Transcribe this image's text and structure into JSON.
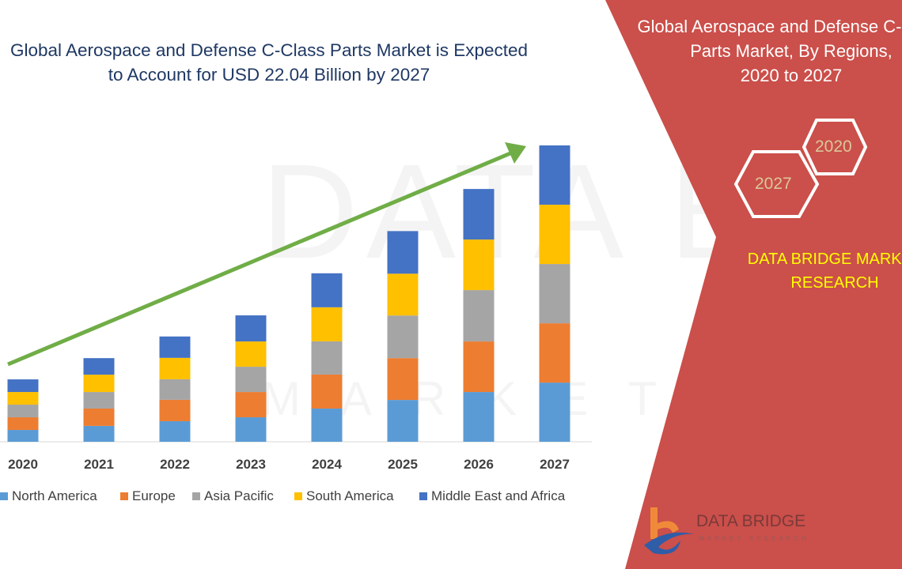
{
  "title": {
    "line1": "Global Aerospace and Defense C-Class Parts Market is Expected",
    "line2": "to Account for USD 22.04 Billion by 2027"
  },
  "side_panel": {
    "title_line1": "Global Aerospace and Defense C-Class",
    "title_line2": "Parts Market, By Regions,",
    "title_line3": "2020 to 2027",
    "hex_year_a": "2020",
    "hex_year_b": "2027",
    "brand_line1": "DATA BRIDGE MARKET",
    "brand_line2": "RESEARCH",
    "logo_text": "DATA BRIDGE",
    "logo_subtext": "MARKET RESEARCH",
    "panel_color": "#CB4F4A",
    "brand_color": "#FFFF00"
  },
  "watermark": {
    "line1": "DATA BRIDGE",
    "line2": "MARKET RESEARCH"
  },
  "chart_data": {
    "type": "bar",
    "stacked": true,
    "categories": [
      "2020",
      "2021",
      "2022",
      "2023",
      "2024",
      "2025",
      "2026",
      "2027"
    ],
    "series": [
      {
        "name": "North America",
        "color": "#5B9BD5",
        "values": [
          0.88,
          1.18,
          1.53,
          1.82,
          2.47,
          3.11,
          3.7,
          4.4
        ]
      },
      {
        "name": "Europe",
        "color": "#ED7D31",
        "values": [
          0.94,
          1.29,
          1.59,
          1.88,
          2.53,
          3.11,
          3.76,
          4.41
        ]
      },
      {
        "name": "Asia Pacific",
        "color": "#A5A5A5",
        "values": [
          0.94,
          1.23,
          1.53,
          1.88,
          2.47,
          3.17,
          3.82,
          4.41
        ]
      },
      {
        "name": "South America",
        "color": "#FFC000",
        "values": [
          0.94,
          1.29,
          1.59,
          1.88,
          2.53,
          3.11,
          3.76,
          4.41
        ]
      },
      {
        "name": "Middle East and Africa",
        "color": "#4472C4",
        "values": [
          0.94,
          1.23,
          1.59,
          1.94,
          2.53,
          3.17,
          3.76,
          4.41
        ]
      }
    ],
    "unit": "USD Billion",
    "ylim": [
      0,
      22.04
    ],
    "y_axis_shown": false,
    "grid": false,
    "legend": "bottom",
    "trend_arrow_color": "#70AD47"
  }
}
